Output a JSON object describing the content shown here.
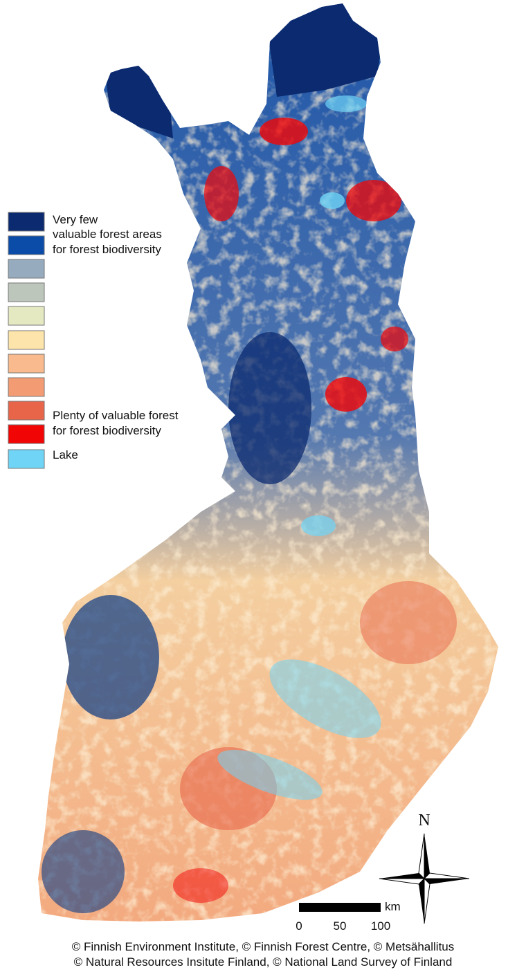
{
  "legend": {
    "colors": [
      "#0b2a6f",
      "#0c4ca9",
      "#97abbf",
      "#bcc6bb",
      "#e5e9c2",
      "#fde4aa",
      "#f9bb8e",
      "#f39b72",
      "#e8654a",
      "#f20505",
      "#6fd4f6"
    ],
    "texts": [
      "Very few",
      "valuable forest areas",
      "for forest biodiversity",
      "Plenty of valuable forest",
      "for forest biodiversity",
      "Lake"
    ]
  },
  "compass": "N",
  "scale_bar": {
    "ticks": [
      0,
      50,
      100
    ],
    "unit": "km"
  },
  "credits": [
    "© Finnish Environment Institute, © Finnish Forest Centre, © Metsähallitus",
    "© Natural Resources Insitute Finland, © National Land Survey of Finland"
  ]
}
